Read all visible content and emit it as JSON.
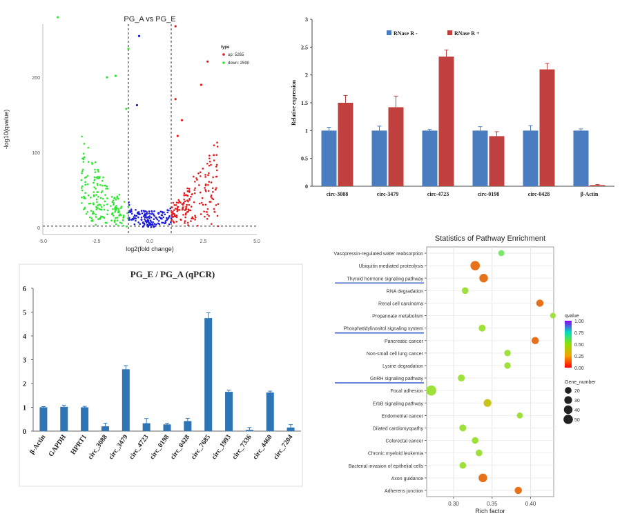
{
  "colors": {
    "up": "#e41a1c",
    "down": "#2ee62e",
    "neutral": "#1a1adb",
    "rnase_minus": "#4a7cc0",
    "rnase_plus": "#c0403f",
    "qpcr_bar": "#2e75b6",
    "underline": "#3a5fcd"
  },
  "chart_data": [
    {
      "type": "scatter",
      "title": "PG_A  vs  PG_E",
      "xlabel": "log2(fold change)",
      "ylabel": "-log10(qvalue)",
      "xlim": [
        -5,
        5
      ],
      "ylim": [
        0,
        280
      ],
      "xticks": [
        "-5.0",
        "-2.5",
        "0.0",
        "2.5",
        "5.0"
      ],
      "yticks": [
        "0",
        "100",
        "200"
      ],
      "thresholds": {
        "x": [
          -1,
          1
        ],
        "y": 2
      },
      "legend": {
        "title": "type",
        "items": [
          "up: 5265",
          "down: 2590"
        ]
      },
      "highlight_points": [
        {
          "x": -4.3,
          "y": 280,
          "type": "down"
        },
        {
          "x": -0.5,
          "y": 255,
          "type": "neutral"
        },
        {
          "x": -1.0,
          "y": 238,
          "type": "down"
        },
        {
          "x": -2.0,
          "y": 200,
          "type": "down"
        },
        {
          "x": -1.6,
          "y": 202,
          "type": "down"
        },
        {
          "x": -1.1,
          "y": 158,
          "type": "down"
        },
        {
          "x": -0.6,
          "y": 163,
          "type": "neutral"
        },
        {
          "x": 1.2,
          "y": 268,
          "type": "up"
        },
        {
          "x": 2.7,
          "y": 221,
          "type": "up"
        },
        {
          "x": 2.4,
          "y": 190,
          "type": "up"
        },
        {
          "x": 1.2,
          "y": 171,
          "type": "up"
        },
        {
          "x": 1.5,
          "y": 143,
          "type": "up"
        },
        {
          "x": 1.3,
          "y": 122,
          "type": "up"
        }
      ]
    },
    {
      "type": "bar",
      "title": "",
      "xlabel": "",
      "ylabel": "Relative expression",
      "ylim": [
        0,
        3
      ],
      "yticks": [
        "0",
        "0.5",
        "1",
        "1.5",
        "2",
        "2.5",
        "3"
      ],
      "categories": [
        "circ-3088",
        "circ-3479",
        "circ-4723",
        "circ-0198",
        "circ-0428",
        "β-Actin"
      ],
      "series": [
        {
          "name": "RNase R -",
          "values": [
            1.0,
            1.0,
            1.0,
            1.0,
            1.0,
            1.0
          ],
          "errors": [
            0.06,
            0.08,
            0.02,
            0.07,
            0.09,
            0.03
          ]
        },
        {
          "name": "RNase R +",
          "values": [
            1.5,
            1.42,
            2.33,
            0.9,
            2.1,
            0.02
          ],
          "errors": [
            0.13,
            0.2,
            0.12,
            0.08,
            0.11,
            0.01
          ]
        }
      ]
    },
    {
      "type": "bar",
      "title": "PG_E / PG_A (qPCR)",
      "xlabel": "",
      "ylabel": "",
      "ylim": [
        0,
        6
      ],
      "yticks": [
        "0",
        "1",
        "2",
        "3",
        "4",
        "5",
        "6"
      ],
      "categories": [
        "β-Actin",
        "GAPDH",
        "HPRT1",
        "circ_3088",
        "circ_3479",
        "circ_4723",
        "circ_0198",
        "circ_0428",
        "circ_7685",
        "circ_1993",
        "circ_7336",
        "circ_4460",
        "circ_7204"
      ],
      "values": [
        1.0,
        1.02,
        1.0,
        0.2,
        2.6,
        0.33,
        0.28,
        0.42,
        4.75,
        1.65,
        0.05,
        1.62,
        0.15
      ],
      "errors": [
        0.03,
        0.07,
        0.04,
        0.13,
        0.15,
        0.2,
        0.05,
        0.12,
        0.22,
        0.07,
        0.1,
        0.06,
        0.12
      ]
    },
    {
      "type": "scatter",
      "title": "Statistics of Pathway Enrichment",
      "xlabel": "Rich factor",
      "ylabel": "",
      "xlim": [
        0.265,
        0.43
      ],
      "xticks": [
        "0.30",
        "0.35",
        "0.40"
      ],
      "colorbar": {
        "title": "qvalue",
        "ticks": [
          "1.00",
          "0.75",
          "0.50",
          "0.25",
          "0.00"
        ]
      },
      "size_legend": {
        "title": "Gene_number",
        "items": [
          "20",
          "30",
          "40",
          "50"
        ]
      },
      "pathways": [
        {
          "name": "Vasopressin-regulated water reabsorption",
          "rich": 0.362,
          "genes": 15,
          "q": 0.55,
          "underlined": false
        },
        {
          "name": "Ubiquitin mediated proteolysis",
          "rich": 0.328,
          "genes": 50,
          "q": 0.09,
          "underlined": false
        },
        {
          "name": "Thyroid hormone signaling pathway",
          "rich": 0.339,
          "genes": 40,
          "q": 0.1,
          "underlined": true
        },
        {
          "name": "RNA degradation",
          "rich": 0.315,
          "genes": 20,
          "q": 0.45,
          "underlined": false
        },
        {
          "name": "Renal cell carcinoma",
          "rich": 0.412,
          "genes": 25,
          "q": 0.12,
          "underlined": false
        },
        {
          "name": "Propanoate metabolism",
          "rich": 0.429,
          "genes": 12,
          "q": 0.35,
          "underlined": false
        },
        {
          "name": "Phosphatidylinositol signaling system",
          "rich": 0.337,
          "genes": 22,
          "q": 0.45,
          "underlined": true
        },
        {
          "name": "Pancreatic cancer",
          "rich": 0.406,
          "genes": 25,
          "q": 0.12,
          "underlined": false
        },
        {
          "name": "Non-small cell lung cancer",
          "rich": 0.37,
          "genes": 18,
          "q": 0.4,
          "underlined": false
        },
        {
          "name": "Lysine degradation",
          "rich": 0.37,
          "genes": 18,
          "q": 0.45,
          "underlined": false
        },
        {
          "name": "GnRH signaling pathway",
          "rich": 0.31,
          "genes": 22,
          "q": 0.45,
          "underlined": true
        },
        {
          "name": "Focal adhesion",
          "rich": 0.271,
          "genes": 60,
          "q": 0.4,
          "underlined": false
        },
        {
          "name": "ErbB signaling pathway",
          "rich": 0.344,
          "genes": 30,
          "q": 0.2,
          "underlined": false
        },
        {
          "name": "Endometrial cancer",
          "rich": 0.386,
          "genes": 15,
          "q": 0.45,
          "underlined": false
        },
        {
          "name": "Dilated cardiomyopathy",
          "rich": 0.312,
          "genes": 22,
          "q": 0.45,
          "underlined": false
        },
        {
          "name": "Colorectal cancer",
          "rich": 0.328,
          "genes": 20,
          "q": 0.45,
          "underlined": false
        },
        {
          "name": "Chronic myeloid leukemia",
          "rich": 0.333,
          "genes": 20,
          "q": 0.45,
          "underlined": false
        },
        {
          "name": "Bacterial invasion of epithelial cells",
          "rich": 0.312,
          "genes": 20,
          "q": 0.45,
          "underlined": false
        },
        {
          "name": "Axon guidance",
          "rich": 0.338,
          "genes": 40,
          "q": 0.1,
          "underlined": false
        },
        {
          "name": "Adherens junction",
          "rich": 0.384,
          "genes": 25,
          "q": 0.12,
          "underlined": false
        }
      ]
    }
  ]
}
